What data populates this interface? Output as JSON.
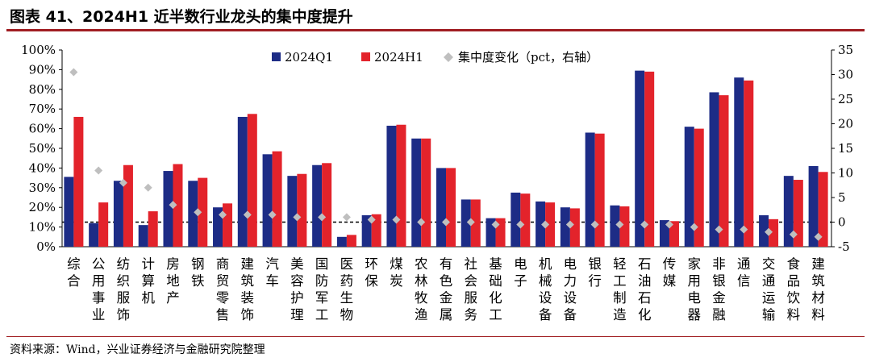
{
  "header": {
    "title": "图表 41、2024H1 近半数行业龙头的集中度提升"
  },
  "footer": {
    "source": "资料来源：Wind，兴业证券经济与金融研究院整理"
  },
  "colors": {
    "q1": "#1d2c86",
    "h1": "#e3232b",
    "change": "#bfbfbf",
    "title_rule": "#a01d22"
  },
  "chart_data": {
    "type": "bar",
    "title": "2024H1 近半数行业龙头的集中度提升",
    "categories": [
      "综合",
      "公用事业",
      "纺织服饰",
      "计算机",
      "房地产",
      "钢铁",
      "商贸零售",
      "建筑装饰",
      "汽车",
      "美容护理",
      "国防军工",
      "医药生物",
      "环保",
      "煤炭",
      "农林牧渔",
      "有色金属",
      "社会服务",
      "基础化工",
      "电子",
      "机械设备",
      "电力设备",
      "银行",
      "轻工制造",
      "石油石化",
      "传媒",
      "家用电器",
      "非银金融",
      "通信",
      "交通运输",
      "食品饮料",
      "建筑材料"
    ],
    "series": [
      {
        "name": "2024Q1",
        "axis": "left",
        "values": [
          35.5,
          12,
          33.5,
          11,
          38.5,
          33.5,
          20,
          66,
          47,
          36,
          41.5,
          5,
          16,
          61.5,
          55,
          40,
          24,
          14.5,
          27.5,
          23,
          20,
          58,
          21,
          89.5,
          13.5,
          61,
          78.5,
          86,
          16,
          36,
          41
        ]
      },
      {
        "name": "2024H1",
        "axis": "left",
        "values": [
          66,
          22.5,
          41.5,
          18,
          42,
          35,
          22,
          67.5,
          48.5,
          37,
          42.5,
          6,
          16.5,
          62,
          55,
          40,
          24,
          14.5,
          27,
          22.5,
          19.5,
          57.5,
          20.5,
          89,
          13,
          60,
          77,
          84.5,
          14,
          34,
          38
        ]
      },
      {
        "name": "集中度变化（pct，右轴）",
        "axis": "right",
        "type": "scatter",
        "values": [
          30.5,
          10.5,
          8,
          7,
          3.5,
          2,
          1.5,
          1.5,
          1.5,
          1,
          1,
          1,
          0.5,
          0.5,
          0,
          0,
          0,
          -0.5,
          -0.5,
          -0.5,
          -0.5,
          -0.5,
          -0.5,
          -0.5,
          -0.5,
          -1,
          -1.5,
          -1.5,
          -2,
          -2.5,
          -3
        ]
      }
    ],
    "y_left": {
      "min": 0,
      "max": 100,
      "step": 10,
      "ticks": [
        "0%",
        "10%",
        "20%",
        "30%",
        "40%",
        "50%",
        "60%",
        "70%",
        "80%",
        "90%",
        "100%"
      ]
    },
    "y_right": {
      "min": -5,
      "max": 35,
      "step": 5,
      "ticks": [
        "-5",
        "0",
        "5",
        "10",
        "15",
        "20",
        "25",
        "30",
        "35"
      ]
    },
    "reference_line": {
      "axis": "right",
      "value": 0,
      "style": "dashed"
    },
    "legend": {
      "placement": "top-center",
      "items": [
        "2024Q1",
        "2024H1",
        "集中度变化（pct，右轴）"
      ]
    },
    "grid": false
  }
}
